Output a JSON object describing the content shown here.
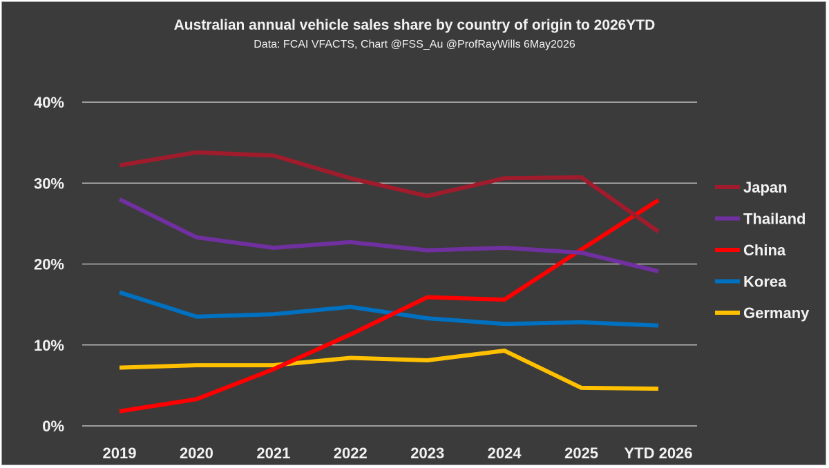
{
  "chart_data": {
    "type": "line",
    "title": "Australian annual vehicle sales share by country of origin to 2026YTD",
    "subtitle": "Data: FCAI VFACTS, Chart @FSS_Au @ProfRayWills 6May2026",
    "categories": [
      "2019",
      "2020",
      "2021",
      "2022",
      "2023",
      "2024",
      "2025",
      "YTD 2026"
    ],
    "yticks": [
      "0%",
      "10%",
      "20%",
      "30%",
      "40%"
    ],
    "ylim": [
      0,
      40
    ],
    "grid": true,
    "legend_position": "right",
    "series": [
      {
        "name": "Japan",
        "color": "#a01c2c",
        "values": [
          32.2,
          33.8,
          33.4,
          30.6,
          28.4,
          30.6,
          30.7,
          24.0
        ]
      },
      {
        "name": "Thailand",
        "color": "#7030a0",
        "values": [
          28.0,
          23.3,
          22.0,
          22.7,
          21.7,
          22.0,
          21.4,
          19.1
        ]
      },
      {
        "name": "China",
        "color": "#ff0000",
        "values": [
          1.8,
          3.3,
          7.0,
          11.3,
          15.9,
          15.6,
          21.8,
          27.9
        ]
      },
      {
        "name": "Korea",
        "color": "#0070c0",
        "values": [
          16.5,
          13.5,
          13.8,
          14.7,
          13.3,
          12.6,
          12.8,
          12.4
        ]
      },
      {
        "name": "Germany",
        "color": "#ffc000",
        "values": [
          7.2,
          7.5,
          7.5,
          8.4,
          8.1,
          9.3,
          4.7,
          4.6
        ]
      }
    ]
  }
}
